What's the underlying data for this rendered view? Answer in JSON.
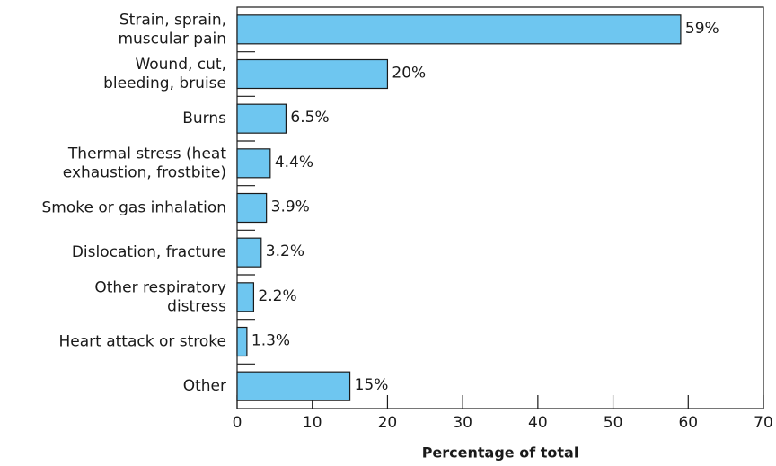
{
  "chart_data": {
    "type": "barh",
    "categories": [
      "Strain, sprain,\nmuscular pain",
      "Wound, cut,\nbleeding, bruise",
      "Burns",
      "Thermal stress (heat\nexhaustion, frostbite)",
      "Smoke or gas inhalation",
      "Dislocation, fracture",
      "Other respiratory\ndistress",
      "Heart attack or stroke",
      "Other"
    ],
    "values": [
      59,
      20,
      6.5,
      4.4,
      3.9,
      3.2,
      2.2,
      1.3,
      15
    ],
    "value_labels": [
      "59%",
      "20%",
      "6.5%",
      "4.4%",
      "3.9%",
      "3.2%",
      "2.2%",
      "1.3%",
      "15%"
    ],
    "color": "#6ec6f0",
    "xlabel": "Percentage of total",
    "xlim": [
      0,
      70
    ],
    "xticks": [
      0,
      10,
      20,
      30,
      40,
      50,
      60,
      70
    ]
  }
}
